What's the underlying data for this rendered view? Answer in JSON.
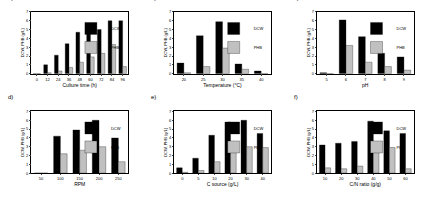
{
  "chart_data": [
    {
      "type": "bar",
      "title": "a)",
      "x_label": "Culture time (h)",
      "y_label": "DCW, PHB (g/L)",
      "categories": [
        "0",
        "12",
        "24",
        "36",
        "48",
        "60",
        "72",
        "84",
        "96"
      ],
      "series": [
        {
          "name": "DCW",
          "color": "#000000",
          "values": [
            0,
            1.0,
            2.1,
            3.4,
            4.7,
            4.9,
            5.0,
            6.0,
            6.0
          ]
        },
        {
          "name": "PHB",
          "color": "#c0c0c0",
          "values": [
            0,
            0.1,
            0.3,
            0.7,
            1.3,
            1.9,
            2.3,
            3.3,
            0.8
          ]
        }
      ],
      "ylim": [
        0,
        7
      ],
      "yticks": [
        0,
        1,
        2,
        3,
        4,
        5,
        6,
        7
      ],
      "grid": false,
      "legend": "upper right"
    },
    {
      "type": "bar",
      "title": "b)",
      "x_label": "Temperature (°C)",
      "y_label": "DCW, PHB (g/L)",
      "categories": [
        "20",
        "25",
        "30",
        "35",
        "40"
      ],
      "series": [
        {
          "name": "DCW",
          "color": "#000000",
          "values": [
            1.2,
            4.3,
            5.9,
            1.1,
            0.3
          ]
        },
        {
          "name": "PHB",
          "color": "#c0c0c0",
          "values": [
            0.1,
            0.8,
            2.9,
            0.5,
            0
          ]
        }
      ],
      "ylim": [
        0,
        7
      ],
      "yticks": [
        0,
        1,
        2,
        3,
        4,
        5,
        6,
        7
      ],
      "grid": false,
      "legend": "upper right"
    },
    {
      "type": "bar",
      "title": "c)",
      "x_label": "pH",
      "y_label": "DCW, PHB (g/L)",
      "categories": [
        "5",
        "6",
        "7",
        "8",
        "9"
      ],
      "series": [
        {
          "name": "DCW",
          "color": "#000000",
          "values": [
            0.1,
            6.1,
            4.2,
            2.3,
            1.9
          ]
        },
        {
          "name": "PHB",
          "color": "#c0c0c0",
          "values": [
            0,
            3.2,
            1.3,
            0.8,
            0.4
          ]
        }
      ],
      "ylim": [
        0,
        7
      ],
      "yticks": [
        0,
        1,
        2,
        3,
        4,
        5,
        6,
        7
      ],
      "grid": false,
      "legend": "upper right"
    },
    {
      "type": "bar",
      "title": "d)",
      "x_label": "RPM",
      "y_label": "DCW, PHB (g/L)",
      "categories": [
        "50",
        "100",
        "150",
        "200",
        "250"
      ],
      "series": [
        {
          "name": "DCW",
          "color": "#000000",
          "values": [
            0,
            4.2,
            4.9,
            6.0,
            4.0
          ]
        },
        {
          "name": "PHB",
          "color": "#c0c0c0",
          "values": [
            0,
            2.2,
            2.6,
            3.0,
            1.3
          ]
        }
      ],
      "ylim": [
        0,
        7
      ],
      "yticks": [
        0,
        1,
        2,
        3,
        4,
        5,
        6,
        7
      ],
      "grid": false,
      "legend": "upper right"
    },
    {
      "type": "bar",
      "title": "e)",
      "x_label": "C source (g/L)",
      "y_label": "DCW, PHB (g/L)",
      "categories": [
        "0",
        "5",
        "10",
        "20",
        "30",
        "40"
      ],
      "series": [
        {
          "name": "DCW",
          "color": "#000000",
          "values": [
            0.6,
            1.7,
            4.3,
            5.8,
            6.0,
            4.5
          ]
        },
        {
          "name": "PHB",
          "color": "#c0c0c0",
          "values": [
            0.1,
            0.3,
            1.3,
            3.0,
            3.0,
            2.9
          ]
        }
      ],
      "ylim": [
        0,
        7
      ],
      "yticks": [
        0,
        1,
        2,
        3,
        4,
        5,
        6,
        7
      ],
      "grid": false,
      "legend": "upper right"
    },
    {
      "type": "bar",
      "title": "f)",
      "x_label": "C/N ratio (g/g)",
      "y_label": "DCW, PHB (g/L)",
      "categories": [
        "10",
        "20",
        "30",
        "40",
        "50",
        "60"
      ],
      "series": [
        {
          "name": "DCW",
          "color": "#000000",
          "values": [
            3.2,
            3.4,
            3.6,
            5.9,
            4.8,
            4.5
          ]
        },
        {
          "name": "PHB",
          "color": "#c0c0c0",
          "values": [
            0.6,
            0.5,
            0.8,
            3.2,
            2.9,
            0.5
          ]
        }
      ],
      "ylim": [
        0,
        7
      ],
      "yticks": [
        0,
        1,
        2,
        3,
        4,
        5,
        6,
        7
      ],
      "grid": false,
      "legend": "upper right"
    }
  ]
}
